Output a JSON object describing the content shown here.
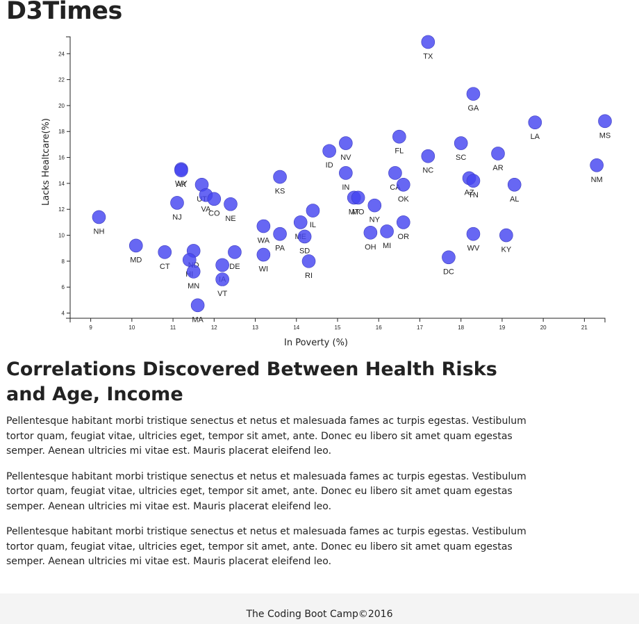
{
  "header": {
    "title": "D3Times"
  },
  "chart_data": {
    "type": "scatter",
    "xlabel": "In Poverty (%)",
    "ylabel": "Lacks Healtcare(%)",
    "xlim": [
      8.5,
      21.5
    ],
    "ylim": [
      3.6,
      25.3
    ],
    "xticks": [
      "9",
      "10",
      "11",
      "12",
      "13",
      "14",
      "15",
      "16",
      "17",
      "18",
      "19",
      "20",
      "21"
    ],
    "yticks": [
      "4",
      "6",
      "8",
      "10",
      "12",
      "14",
      "16",
      "18",
      "20",
      "22",
      "24"
    ],
    "grid": false,
    "marker_color": "#4646f0",
    "points": [
      {
        "abbr": "TX",
        "x": 17.2,
        "y": 24.9
      },
      {
        "abbr": "GA",
        "x": 18.3,
        "y": 20.9
      },
      {
        "abbr": "MS",
        "x": 21.5,
        "y": 18.8
      },
      {
        "abbr": "LA",
        "x": 19.8,
        "y": 18.7
      },
      {
        "abbr": "FL",
        "x": 16.5,
        "y": 17.6
      },
      {
        "abbr": "NV",
        "x": 15.2,
        "y": 17.1
      },
      {
        "abbr": "SC",
        "x": 18.0,
        "y": 17.1
      },
      {
        "abbr": "ID",
        "x": 14.8,
        "y": 16.5
      },
      {
        "abbr": "AR",
        "x": 18.9,
        "y": 16.3
      },
      {
        "abbr": "NC",
        "x": 17.2,
        "y": 16.1
      },
      {
        "abbr": "NM",
        "x": 21.3,
        "y": 15.4
      },
      {
        "abbr": "WY",
        "x": 11.2,
        "y": 15.1
      },
      {
        "abbr": "AK",
        "x": 11.2,
        "y": 15.0
      },
      {
        "abbr": "IN",
        "x": 15.2,
        "y": 14.8
      },
      {
        "abbr": "CA",
        "x": 16.4,
        "y": 14.8
      },
      {
        "abbr": "KS",
        "x": 13.6,
        "y": 14.5
      },
      {
        "abbr": "AZ",
        "x": 18.2,
        "y": 14.4
      },
      {
        "abbr": "TN",
        "x": 18.3,
        "y": 14.2
      },
      {
        "abbr": "OK",
        "x": 16.6,
        "y": 13.9
      },
      {
        "abbr": "AL",
        "x": 19.3,
        "y": 13.9
      },
      {
        "abbr": "UT",
        "x": 11.7,
        "y": 13.9
      },
      {
        "abbr": "VA",
        "x": 11.8,
        "y": 13.1
      },
      {
        "abbr": "MT",
        "x": 15.4,
        "y": 12.9
      },
      {
        "abbr": "MO",
        "x": 15.5,
        "y": 12.9
      },
      {
        "abbr": "CO",
        "x": 12.0,
        "y": 12.8
      },
      {
        "abbr": "NJ",
        "x": 11.1,
        "y": 12.5
      },
      {
        "abbr": "NE",
        "x": 12.4,
        "y": 12.4
      },
      {
        "abbr": "NY",
        "x": 15.9,
        "y": 12.3
      },
      {
        "abbr": "IL",
        "x": 14.4,
        "y": 11.9
      },
      {
        "abbr": "NH",
        "x": 9.2,
        "y": 11.4
      },
      {
        "abbr": "ME",
        "x": 14.1,
        "y": 11.0
      },
      {
        "abbr": "OR",
        "x": 16.6,
        "y": 11.0
      },
      {
        "abbr": "WA",
        "x": 13.2,
        "y": 10.7
      },
      {
        "abbr": "OH",
        "x": 15.8,
        "y": 10.2
      },
      {
        "abbr": "MI",
        "x": 16.2,
        "y": 10.3
      },
      {
        "abbr": "PA",
        "x": 13.6,
        "y": 10.1
      },
      {
        "abbr": "WV",
        "x": 18.3,
        "y": 10.1
      },
      {
        "abbr": "KY",
        "x": 19.1,
        "y": 10.0
      },
      {
        "abbr": "SD",
        "x": 14.2,
        "y": 9.9
      },
      {
        "abbr": "MD",
        "x": 10.1,
        "y": 9.2
      },
      {
        "abbr": "ND",
        "x": 11.5,
        "y": 8.8
      },
      {
        "abbr": "CT",
        "x": 10.8,
        "y": 8.7
      },
      {
        "abbr": "DE",
        "x": 12.5,
        "y": 8.7
      },
      {
        "abbr": "WI",
        "x": 13.2,
        "y": 8.5
      },
      {
        "abbr": "DC",
        "x": 17.7,
        "y": 8.3
      },
      {
        "abbr": "HI",
        "x": 11.4,
        "y": 8.1
      },
      {
        "abbr": "RI",
        "x": 14.3,
        "y": 8.0
      },
      {
        "abbr": "IA",
        "x": 12.2,
        "y": 7.7
      },
      {
        "abbr": "MN",
        "x": 11.5,
        "y": 7.2
      },
      {
        "abbr": "VT",
        "x": 12.2,
        "y": 6.6
      },
      {
        "abbr": "MA",
        "x": 11.6,
        "y": 4.6
      }
    ]
  },
  "article": {
    "heading": "Correlations Discovered Between Health Risks and Age, Income",
    "paragraphs": [
      "Pellentesque habitant morbi tristique senectus et netus et malesuada fames ac turpis egestas. Vestibulum tortor quam, feugiat vitae, ultricies eget, tempor sit amet, ante. Donec eu libero sit amet quam egestas semper. Aenean ultricies mi vitae est. Mauris placerat eleifend leo.",
      "Pellentesque habitant morbi tristique senectus et netus et malesuada fames ac turpis egestas. Vestibulum tortor quam, feugiat vitae, ultricies eget, tempor sit amet, ante. Donec eu libero sit amet quam egestas semper. Aenean ultricies mi vitae est. Mauris placerat eleifend leo.",
      "Pellentesque habitant morbi tristique senectus et netus et malesuada fames ac turpis egestas. Vestibulum tortor quam, feugiat vitae, ultricies eget, tempor sit amet, ante. Donec eu libero sit amet quam egestas semper. Aenean ultricies mi vitae est. Mauris placerat eleifend leo."
    ]
  },
  "footer": {
    "text": "The Coding Boot Camp©2016"
  }
}
